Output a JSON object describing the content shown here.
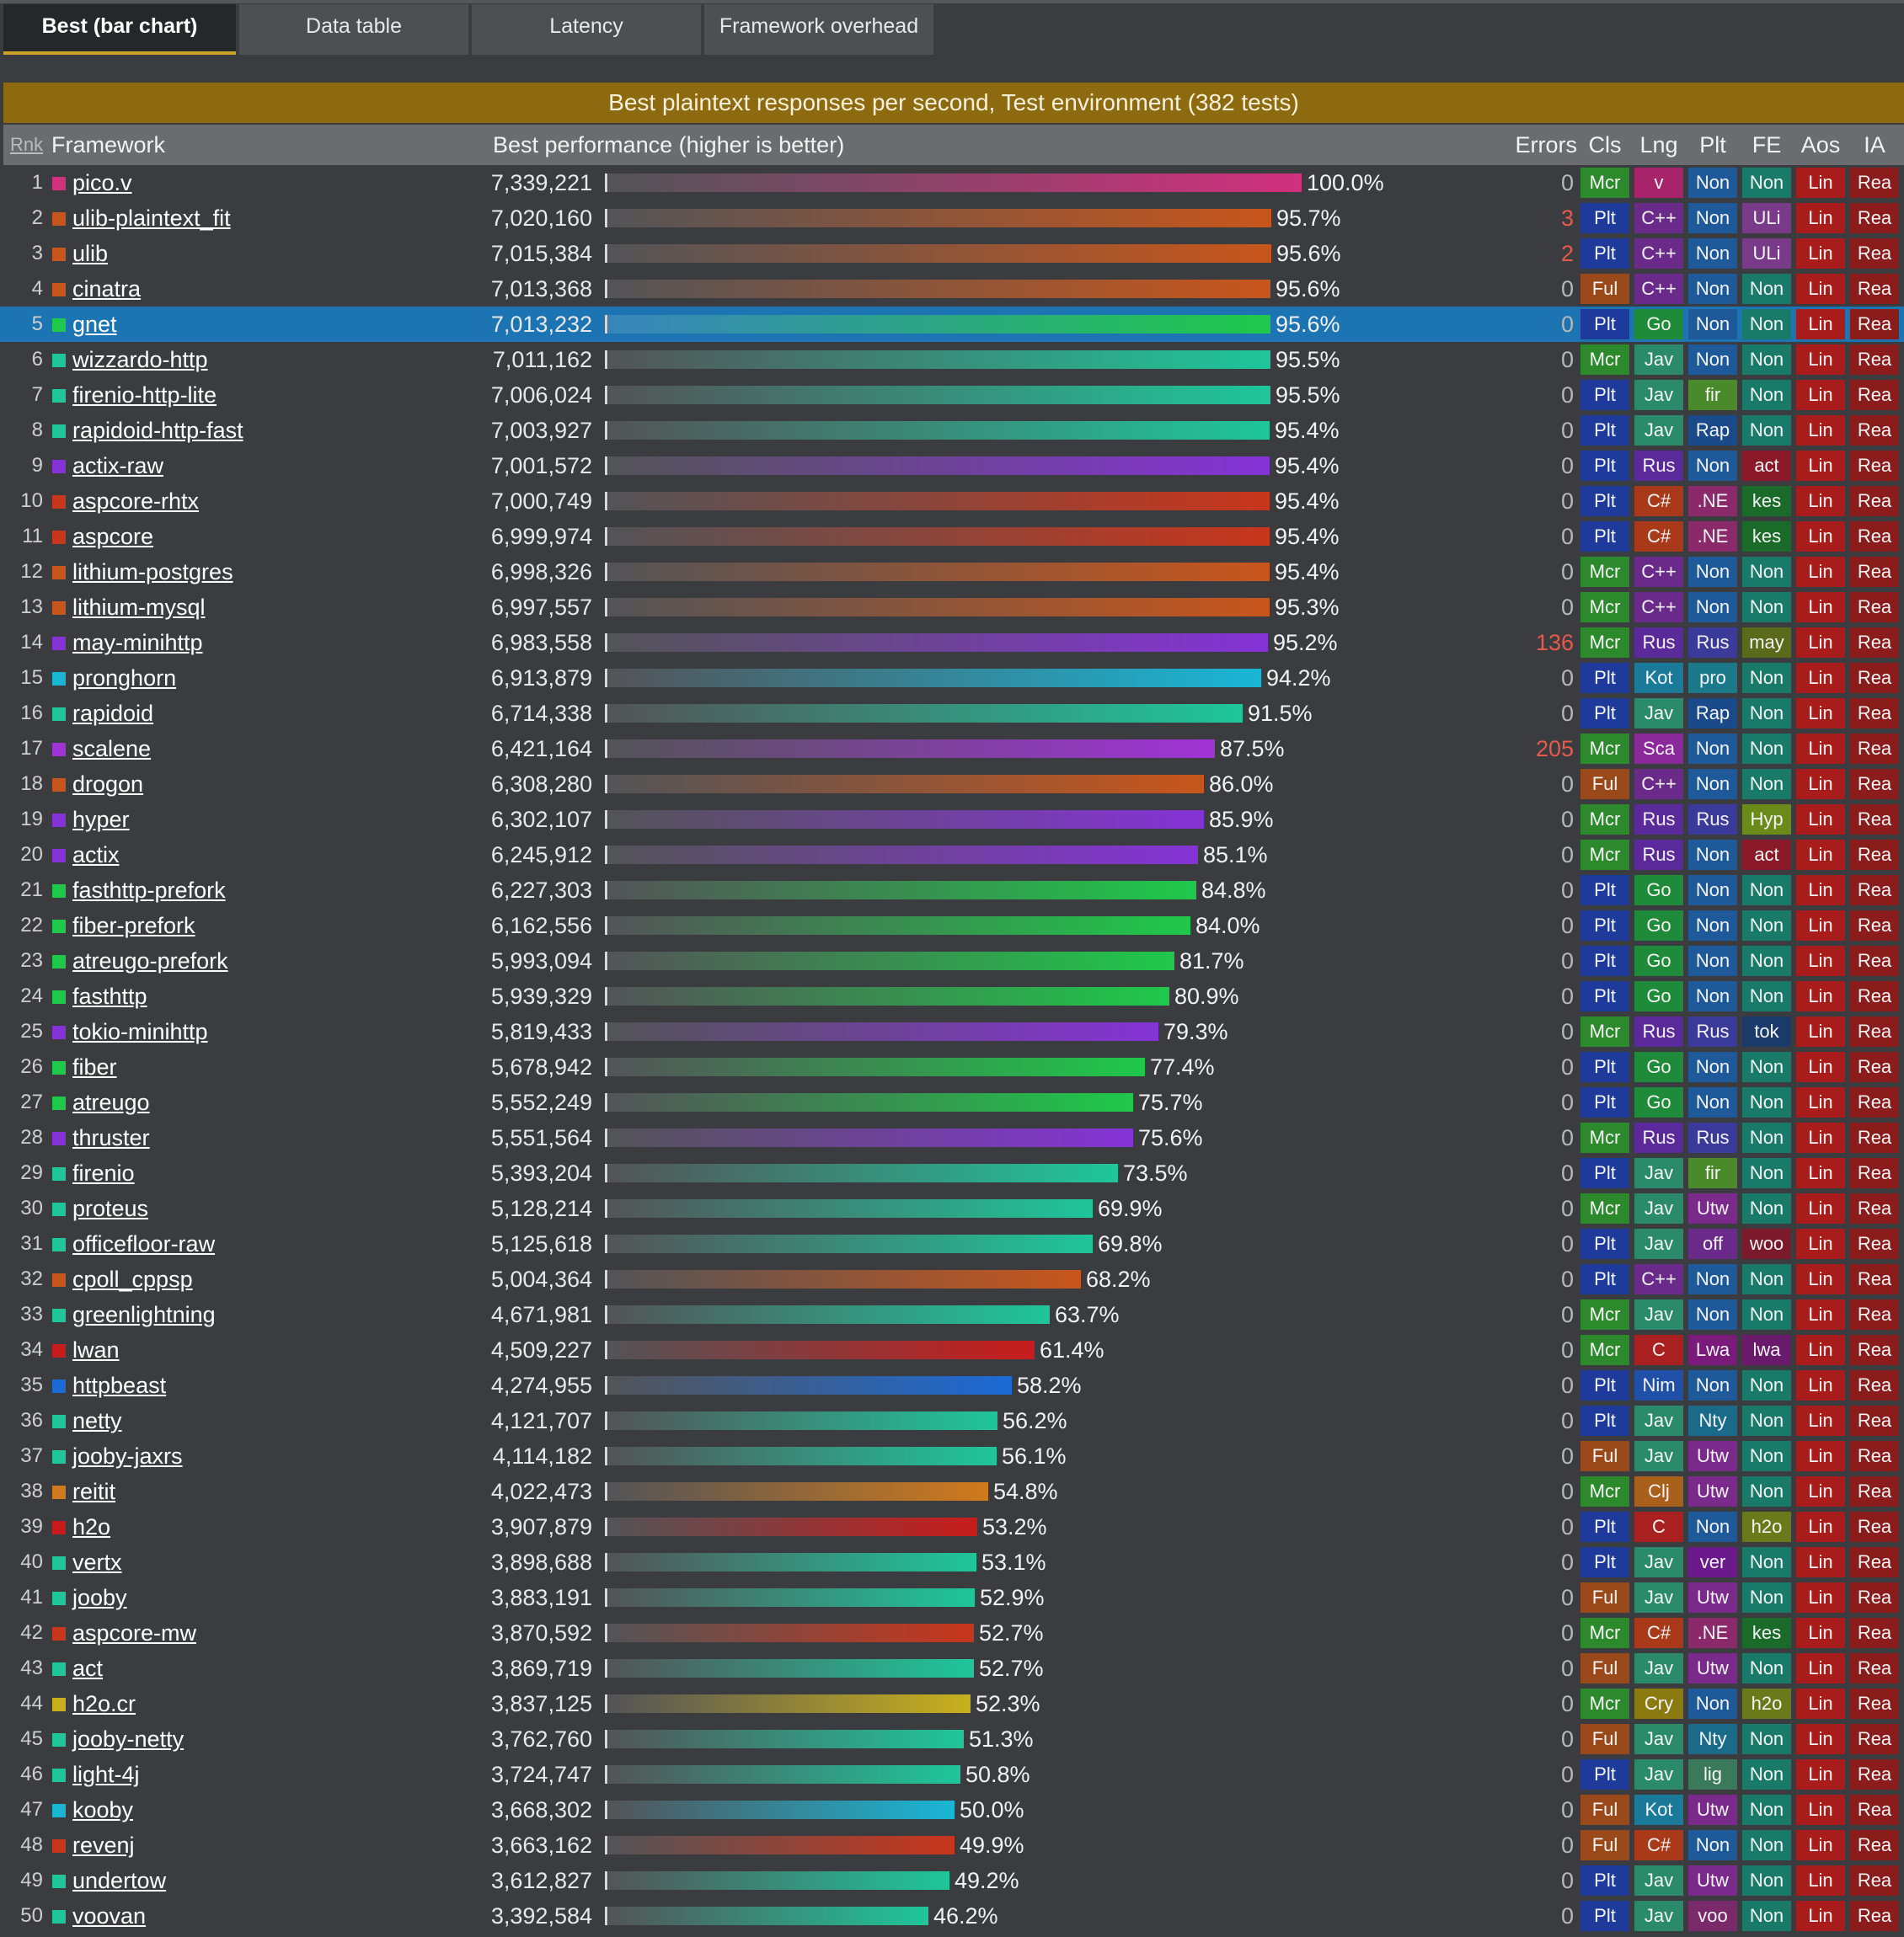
{
  "tabs": [
    {
      "label": "Best (bar chart)",
      "active": true
    },
    {
      "label": "Data table",
      "active": false
    },
    {
      "label": "Latency",
      "active": false
    },
    {
      "label": "Framework overhead",
      "active": false
    }
  ],
  "colors": {
    "banner": "#8d6a0f",
    "selected_row": "#1d74b3",
    "error_text": "#e85a4a",
    "lang": {
      "v": "#d1307d",
      "C++": "#c8561c",
      "Go": "#1fc84a",
      "Jav": "#1fc69a",
      "Rus": "#8533d6",
      "C#": "#c8361c",
      "Kot": "#19b6d6",
      "Sca": "#a033d6",
      "C": "#c81c1c",
      "Nim": "#1c6ad6",
      "Clj": "#cf7a1c",
      "Cry": "#c8b01c"
    },
    "tags": {
      "Cls": {
        "Mcr": "#2c8a2c",
        "Plt": "#1e3a9a",
        "Ful": "#9a4a1a"
      },
      "Lng": {
        "v": "#a8246a",
        "C++": "#6a2a8a",
        "Go": "#1f8a3a",
        "Jav": "#2a8a6a",
        "Rus": "#5a2a9a",
        "C#": "#a83a1a",
        "Kot": "#1a7a9a",
        "Sca": "#8a2a9a",
        "C": "#a82020",
        "Nim": "#2050a8",
        "Clj": "#a8601a",
        "Cry": "#8a7a10"
      },
      "Plt": {
        "Non": "#1e5a9a",
        "fir": "#4a8a2a",
        "Rap": "#1a4a8a",
        ".NE": "#8a2a6a",
        "Rus": "#3a3a9a",
        "pro": "#1a7a8a",
        "Hyp": "#6a8a1a",
        "Utw": "#7a2a8a",
        "off": "#6a2a8a",
        "Lwa": "#7a1a7a",
        "Nty": "#1a6a8a",
        "ver": "#6a1a8a",
        "lig": "#3a7a5a",
        "voo": "#7a2a6a"
      },
      "FE": {
        "Non": "#1a7a6a",
        "ULi": "#7a3a8a",
        "act": "#8a1a2a",
        "kes": "#1a6a2a",
        "may": "#5a6a1a",
        "Hyp": "#6a8a1a",
        "tok": "#1a3a6a",
        "woo": "#7a1a2a",
        "lwa": "#6a1a6a",
        "h2o": "#6a7a1a"
      },
      "Aos": {
        "Lin": "#a81c1c"
      },
      "IA": {
        "Rea": "#8a1c1c"
      }
    }
  },
  "chart_data": {
    "type": "bar",
    "orientation": "horizontal",
    "title": "Best plaintext responses per second, Test environment   (382 tests)",
    "columns": [
      "Rnk",
      "Framework",
      "Best performance (higher is better)",
      "Errors",
      "Cls",
      "Lng",
      "Plt",
      "FE",
      "Aos",
      "IA"
    ],
    "value_unit": "responses per second",
    "xlim": [
      0,
      7339221
    ],
    "selected_rank": 5,
    "rows": [
      {
        "rank": "1",
        "framework": "pico.v",
        "value": 7339221,
        "value_label": "7,339,221",
        "pct": "100.0%",
        "errors": "0",
        "cls": "Mcr",
        "lng": "v",
        "plt": "Non",
        "fe": "Non",
        "aos": "Lin",
        "ia": "Rea"
      },
      {
        "rank": "2",
        "framework": "ulib-plaintext_fit",
        "value": 7020160,
        "value_label": "7,020,160",
        "pct": "95.7%",
        "errors": "3",
        "cls": "Plt",
        "lng": "C++",
        "plt": "Non",
        "fe": "ULi",
        "aos": "Lin",
        "ia": "Rea"
      },
      {
        "rank": "3",
        "framework": "ulib",
        "value": 7015384,
        "value_label": "7,015,384",
        "pct": "95.6%",
        "errors": "2",
        "cls": "Plt",
        "lng": "C++",
        "plt": "Non",
        "fe": "ULi",
        "aos": "Lin",
        "ia": "Rea"
      },
      {
        "rank": "4",
        "framework": "cinatra",
        "value": 7013368,
        "value_label": "7,013,368",
        "pct": "95.6%",
        "errors": "0",
        "cls": "Ful",
        "lng": "C++",
        "plt": "Non",
        "fe": "Non",
        "aos": "Lin",
        "ia": "Rea"
      },
      {
        "rank": "5",
        "framework": "gnet",
        "value": 7013232,
        "value_label": "7,013,232",
        "pct": "95.6%",
        "errors": "0",
        "cls": "Plt",
        "lng": "Go",
        "plt": "Non",
        "fe": "Non",
        "aos": "Lin",
        "ia": "Rea"
      },
      {
        "rank": "6",
        "framework": "wizzardo-http",
        "value": 7011162,
        "value_label": "7,011,162",
        "pct": "95.5%",
        "errors": "0",
        "cls": "Mcr",
        "lng": "Jav",
        "plt": "Non",
        "fe": "Non",
        "aos": "Lin",
        "ia": "Rea"
      },
      {
        "rank": "7",
        "framework": "firenio-http-lite",
        "value": 7006024,
        "value_label": "7,006,024",
        "pct": "95.5%",
        "errors": "0",
        "cls": "Plt",
        "lng": "Jav",
        "plt": "fir",
        "fe": "Non",
        "aos": "Lin",
        "ia": "Rea"
      },
      {
        "rank": "8",
        "framework": "rapidoid-http-fast",
        "value": 7003927,
        "value_label": "7,003,927",
        "pct": "95.4%",
        "errors": "0",
        "cls": "Plt",
        "lng": "Jav",
        "plt": "Rap",
        "fe": "Non",
        "aos": "Lin",
        "ia": "Rea"
      },
      {
        "rank": "9",
        "framework": "actix-raw",
        "value": 7001572,
        "value_label": "7,001,572",
        "pct": "95.4%",
        "errors": "0",
        "cls": "Plt",
        "lng": "Rus",
        "plt": "Non",
        "fe": "act",
        "aos": "Lin",
        "ia": "Rea"
      },
      {
        "rank": "10",
        "framework": "aspcore-rhtx",
        "value": 7000749,
        "value_label": "7,000,749",
        "pct": "95.4%",
        "errors": "0",
        "cls": "Plt",
        "lng": "C#",
        "plt": ".NE",
        "fe": "kes",
        "aos": "Lin",
        "ia": "Rea"
      },
      {
        "rank": "11",
        "framework": "aspcore",
        "value": 6999974,
        "value_label": "6,999,974",
        "pct": "95.4%",
        "errors": "0",
        "cls": "Plt",
        "lng": "C#",
        "plt": ".NE",
        "fe": "kes",
        "aos": "Lin",
        "ia": "Rea"
      },
      {
        "rank": "12",
        "framework": "lithium-postgres",
        "value": 6998326,
        "value_label": "6,998,326",
        "pct": "95.4%",
        "errors": "0",
        "cls": "Mcr",
        "lng": "C++",
        "plt": "Non",
        "fe": "Non",
        "aos": "Lin",
        "ia": "Rea"
      },
      {
        "rank": "13",
        "framework": "lithium-mysql",
        "value": 6997557,
        "value_label": "6,997,557",
        "pct": "95.3%",
        "errors": "0",
        "cls": "Mcr",
        "lng": "C++",
        "plt": "Non",
        "fe": "Non",
        "aos": "Lin",
        "ia": "Rea"
      },
      {
        "rank": "14",
        "framework": "may-minihttp",
        "value": 6983558,
        "value_label": "6,983,558",
        "pct": "95.2%",
        "errors": "136",
        "cls": "Mcr",
        "lng": "Rus",
        "plt": "Rus",
        "fe": "may",
        "aos": "Lin",
        "ia": "Rea"
      },
      {
        "rank": "15",
        "framework": "pronghorn",
        "value": 6913879,
        "value_label": "6,913,879",
        "pct": "94.2%",
        "errors": "0",
        "cls": "Plt",
        "lng": "Kot",
        "plt": "pro",
        "fe": "Non",
        "aos": "Lin",
        "ia": "Rea"
      },
      {
        "rank": "16",
        "framework": "rapidoid",
        "value": 6714338,
        "value_label": "6,714,338",
        "pct": "91.5%",
        "errors": "0",
        "cls": "Plt",
        "lng": "Jav",
        "plt": "Rap",
        "fe": "Non",
        "aos": "Lin",
        "ia": "Rea"
      },
      {
        "rank": "17",
        "framework": "scalene",
        "value": 6421164,
        "value_label": "6,421,164",
        "pct": "87.5%",
        "errors": "205",
        "cls": "Mcr",
        "lng": "Sca",
        "plt": "Non",
        "fe": "Non",
        "aos": "Lin",
        "ia": "Rea"
      },
      {
        "rank": "18",
        "framework": "drogon",
        "value": 6308280,
        "value_label": "6,308,280",
        "pct": "86.0%",
        "errors": "0",
        "cls": "Ful",
        "lng": "C++",
        "plt": "Non",
        "fe": "Non",
        "aos": "Lin",
        "ia": "Rea"
      },
      {
        "rank": "19",
        "framework": "hyper",
        "value": 6302107,
        "value_label": "6,302,107",
        "pct": "85.9%",
        "errors": "0",
        "cls": "Mcr",
        "lng": "Rus",
        "plt": "Rus",
        "fe": "Hyp",
        "aos": "Lin",
        "ia": "Rea"
      },
      {
        "rank": "20",
        "framework": "actix",
        "value": 6245912,
        "value_label": "6,245,912",
        "pct": "85.1%",
        "errors": "0",
        "cls": "Mcr",
        "lng": "Rus",
        "plt": "Non",
        "fe": "act",
        "aos": "Lin",
        "ia": "Rea"
      },
      {
        "rank": "21",
        "framework": "fasthttp-prefork",
        "value": 6227303,
        "value_label": "6,227,303",
        "pct": "84.8%",
        "errors": "0",
        "cls": "Plt",
        "lng": "Go",
        "plt": "Non",
        "fe": "Non",
        "aos": "Lin",
        "ia": "Rea"
      },
      {
        "rank": "22",
        "framework": "fiber-prefork",
        "value": 6162556,
        "value_label": "6,162,556",
        "pct": "84.0%",
        "errors": "0",
        "cls": "Plt",
        "lng": "Go",
        "plt": "Non",
        "fe": "Non",
        "aos": "Lin",
        "ia": "Rea"
      },
      {
        "rank": "23",
        "framework": "atreugo-prefork",
        "value": 5993094,
        "value_label": "5,993,094",
        "pct": "81.7%",
        "errors": "0",
        "cls": "Plt",
        "lng": "Go",
        "plt": "Non",
        "fe": "Non",
        "aos": "Lin",
        "ia": "Rea"
      },
      {
        "rank": "24",
        "framework": "fasthttp",
        "value": 5939329,
        "value_label": "5,939,329",
        "pct": "80.9%",
        "errors": "0",
        "cls": "Plt",
        "lng": "Go",
        "plt": "Non",
        "fe": "Non",
        "aos": "Lin",
        "ia": "Rea"
      },
      {
        "rank": "25",
        "framework": "tokio-minihttp",
        "value": 5819433,
        "value_label": "5,819,433",
        "pct": "79.3%",
        "errors": "0",
        "cls": "Mcr",
        "lng": "Rus",
        "plt": "Rus",
        "fe": "tok",
        "aos": "Lin",
        "ia": "Rea"
      },
      {
        "rank": "26",
        "framework": "fiber",
        "value": 5678942,
        "value_label": "5,678,942",
        "pct": "77.4%",
        "errors": "0",
        "cls": "Plt",
        "lng": "Go",
        "plt": "Non",
        "fe": "Non",
        "aos": "Lin",
        "ia": "Rea"
      },
      {
        "rank": "27",
        "framework": "atreugo",
        "value": 5552249,
        "value_label": "5,552,249",
        "pct": "75.7%",
        "errors": "0",
        "cls": "Plt",
        "lng": "Go",
        "plt": "Non",
        "fe": "Non",
        "aos": "Lin",
        "ia": "Rea"
      },
      {
        "rank": "28",
        "framework": "thruster",
        "value": 5551564,
        "value_label": "5,551,564",
        "pct": "75.6%",
        "errors": "0",
        "cls": "Mcr",
        "lng": "Rus",
        "plt": "Rus",
        "fe": "Non",
        "aos": "Lin",
        "ia": "Rea"
      },
      {
        "rank": "29",
        "framework": "firenio",
        "value": 5393204,
        "value_label": "5,393,204",
        "pct": "73.5%",
        "errors": "0",
        "cls": "Plt",
        "lng": "Jav",
        "plt": "fir",
        "fe": "Non",
        "aos": "Lin",
        "ia": "Rea"
      },
      {
        "rank": "30",
        "framework": "proteus",
        "value": 5128214,
        "value_label": "5,128,214",
        "pct": "69.9%",
        "errors": "0",
        "cls": "Mcr",
        "lng": "Jav",
        "plt": "Utw",
        "fe": "Non",
        "aos": "Lin",
        "ia": "Rea"
      },
      {
        "rank": "31",
        "framework": "officefloor-raw",
        "value": 5125618,
        "value_label": "5,125,618",
        "pct": "69.8%",
        "errors": "0",
        "cls": "Plt",
        "lng": "Jav",
        "plt": "off",
        "fe": "woo",
        "aos": "Lin",
        "ia": "Rea"
      },
      {
        "rank": "32",
        "framework": "cpoll_cppsp",
        "value": 5004364,
        "value_label": "5,004,364",
        "pct": "68.2%",
        "errors": "0",
        "cls": "Plt",
        "lng": "C++",
        "plt": "Non",
        "fe": "Non",
        "aos": "Lin",
        "ia": "Rea"
      },
      {
        "rank": "33",
        "framework": "greenlightning",
        "value": 4671981,
        "value_label": "4,671,981",
        "pct": "63.7%",
        "errors": "0",
        "cls": "Mcr",
        "lng": "Jav",
        "plt": "Non",
        "fe": "Non",
        "aos": "Lin",
        "ia": "Rea"
      },
      {
        "rank": "34",
        "framework": "lwan",
        "value": 4509227,
        "value_label": "4,509,227",
        "pct": "61.4%",
        "errors": "0",
        "cls": "Mcr",
        "lng": "C",
        "plt": "Lwa",
        "fe": "lwa",
        "aos": "Lin",
        "ia": "Rea"
      },
      {
        "rank": "35",
        "framework": "httpbeast",
        "value": 4274955,
        "value_label": "4,274,955",
        "pct": "58.2%",
        "errors": "0",
        "cls": "Plt",
        "lng": "Nim",
        "plt": "Non",
        "fe": "Non",
        "aos": "Lin",
        "ia": "Rea"
      },
      {
        "rank": "36",
        "framework": "netty",
        "value": 4121707,
        "value_label": "4,121,707",
        "pct": "56.2%",
        "errors": "0",
        "cls": "Plt",
        "lng": "Jav",
        "plt": "Nty",
        "fe": "Non",
        "aos": "Lin",
        "ia": "Rea"
      },
      {
        "rank": "37",
        "framework": "jooby-jaxrs",
        "value": 4114182,
        "value_label": "4,114,182",
        "pct": "56.1%",
        "errors": "0",
        "cls": "Ful",
        "lng": "Jav",
        "plt": "Utw",
        "fe": "Non",
        "aos": "Lin",
        "ia": "Rea"
      },
      {
        "rank": "38",
        "framework": "reitit",
        "value": 4022473,
        "value_label": "4,022,473",
        "pct": "54.8%",
        "errors": "0",
        "cls": "Mcr",
        "lng": "Clj",
        "plt": "Utw",
        "fe": "Non",
        "aos": "Lin",
        "ia": "Rea"
      },
      {
        "rank": "39",
        "framework": "h2o",
        "value": 3907879,
        "value_label": "3,907,879",
        "pct": "53.2%",
        "errors": "0",
        "cls": "Plt",
        "lng": "C",
        "plt": "Non",
        "fe": "h2o",
        "aos": "Lin",
        "ia": "Rea"
      },
      {
        "rank": "40",
        "framework": "vertx",
        "value": 3898688,
        "value_label": "3,898,688",
        "pct": "53.1%",
        "errors": "0",
        "cls": "Plt",
        "lng": "Jav",
        "plt": "ver",
        "fe": "Non",
        "aos": "Lin",
        "ia": "Rea"
      },
      {
        "rank": "41",
        "framework": "jooby",
        "value": 3883191,
        "value_label": "3,883,191",
        "pct": "52.9%",
        "errors": "0",
        "cls": "Ful",
        "lng": "Jav",
        "plt": "Utw",
        "fe": "Non",
        "aos": "Lin",
        "ia": "Rea"
      },
      {
        "rank": "42",
        "framework": "aspcore-mw",
        "value": 3870592,
        "value_label": "3,870,592",
        "pct": "52.7%",
        "errors": "0",
        "cls": "Mcr",
        "lng": "C#",
        "plt": ".NE",
        "fe": "kes",
        "aos": "Lin",
        "ia": "Rea"
      },
      {
        "rank": "43",
        "framework": "act",
        "value": 3869719,
        "value_label": "3,869,719",
        "pct": "52.7%",
        "errors": "0",
        "cls": "Ful",
        "lng": "Jav",
        "plt": "Utw",
        "fe": "Non",
        "aos": "Lin",
        "ia": "Rea"
      },
      {
        "rank": "44",
        "framework": "h2o.cr",
        "value": 3837125,
        "value_label": "3,837,125",
        "pct": "52.3%",
        "errors": "0",
        "cls": "Mcr",
        "lng": "Cry",
        "plt": "Non",
        "fe": "h2o",
        "aos": "Lin",
        "ia": "Rea"
      },
      {
        "rank": "45",
        "framework": "jooby-netty",
        "value": 3762760,
        "value_label": "3,762,760",
        "pct": "51.3%",
        "errors": "0",
        "cls": "Ful",
        "lng": "Jav",
        "plt": "Nty",
        "fe": "Non",
        "aos": "Lin",
        "ia": "Rea"
      },
      {
        "rank": "46",
        "framework": "light-4j",
        "value": 3724747,
        "value_label": "3,724,747",
        "pct": "50.8%",
        "errors": "0",
        "cls": "Plt",
        "lng": "Jav",
        "plt": "lig",
        "fe": "Non",
        "aos": "Lin",
        "ia": "Rea"
      },
      {
        "rank": "47",
        "framework": "kooby",
        "value": 3668302,
        "value_label": "3,668,302",
        "pct": "50.0%",
        "errors": "0",
        "cls": "Ful",
        "lng": "Kot",
        "plt": "Utw",
        "fe": "Non",
        "aos": "Lin",
        "ia": "Rea"
      },
      {
        "rank": "48",
        "framework": "revenj",
        "value": 3663162,
        "value_label": "3,663,162",
        "pct": "49.9%",
        "errors": "0",
        "cls": "Ful",
        "lng": "C#",
        "plt": "Non",
        "fe": "Non",
        "aos": "Lin",
        "ia": "Rea"
      },
      {
        "rank": "49",
        "framework": "undertow",
        "value": 3612827,
        "value_label": "3,612,827",
        "pct": "49.2%",
        "errors": "0",
        "cls": "Plt",
        "lng": "Jav",
        "plt": "Utw",
        "fe": "Non",
        "aos": "Lin",
        "ia": "Rea"
      },
      {
        "rank": "50",
        "framework": "voovan",
        "value": 3392584,
        "value_label": "3,392,584",
        "pct": "46.2%",
        "errors": "0",
        "cls": "Plt",
        "lng": "Jav",
        "plt": "voo",
        "fe": "Non",
        "aos": "Lin",
        "ia": "Rea"
      }
    ]
  }
}
